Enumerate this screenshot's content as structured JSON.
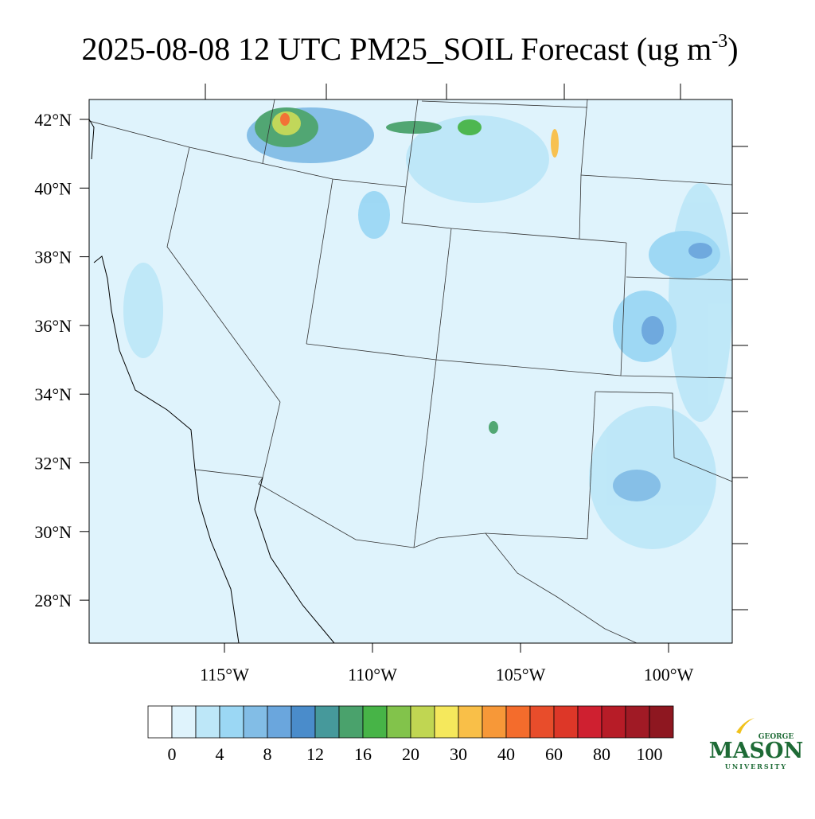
{
  "title": {
    "text": "2025-08-08 12 UTC PM25_SOIL Forecast (ug m",
    "superscript": "-3",
    "suffix": ")"
  },
  "lat_labels": [
    "42°N",
    "40°N",
    "38°N",
    "36°N",
    "34°N",
    "32°N",
    "30°N",
    "28°N"
  ],
  "lon_labels": [
    "115°W",
    "110°W",
    "105°W",
    "100°W"
  ],
  "colorbar": {
    "colors": [
      "#ffffff",
      "#dff3fc",
      "#bde7f8",
      "#9bd7f4",
      "#82bde6",
      "#6aa6dd",
      "#4a8ccb",
      "#46999b",
      "#4aa26c",
      "#47b447",
      "#82c34b",
      "#c0d652",
      "#f5e85c",
      "#f9bf48",
      "#f79838",
      "#f46c2c",
      "#e84d2b",
      "#dd3728",
      "#cf2030",
      "#b71c27",
      "#a01a25",
      "#8e1720"
    ],
    "labels": [
      0,
      4,
      8,
      12,
      16,
      20,
      30,
      40,
      60,
      80,
      100
    ]
  },
  "logo": {
    "top": "GEORGE",
    "main": "MASON",
    "bottom": "UNIVERSITY"
  }
}
